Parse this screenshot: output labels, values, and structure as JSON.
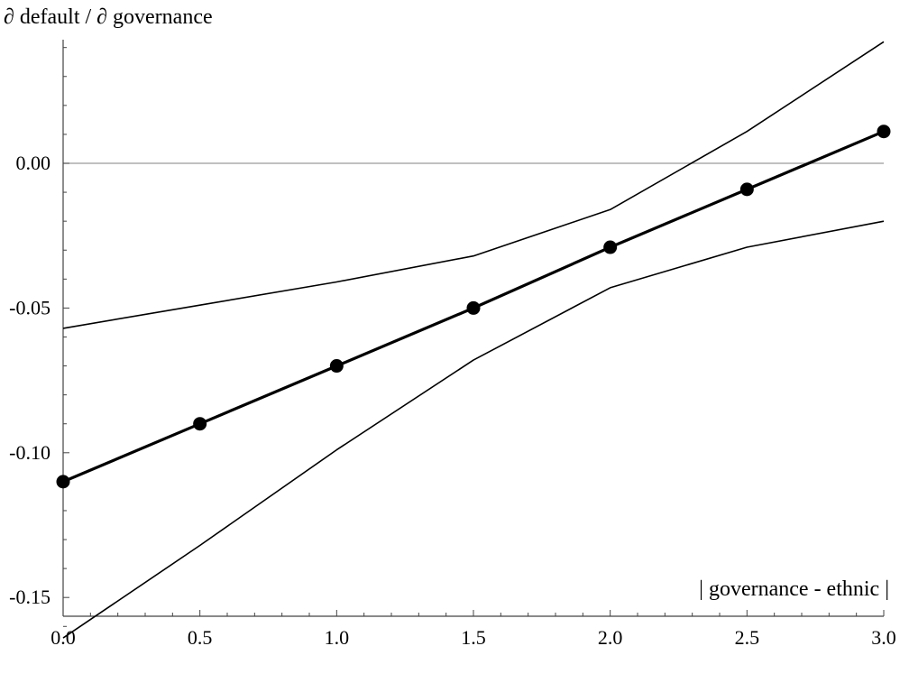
{
  "chart_data": {
    "type": "line",
    "title": "",
    "ylabel": "∂ default / ∂ governance",
    "xlabel": "| governance - ethnic |",
    "xlim": [
      0.0,
      3.0
    ],
    "ylim": [
      -0.165,
      0.043
    ],
    "x_ticks": [
      0.0,
      0.5,
      1.0,
      1.5,
      2.0,
      2.5,
      3.0
    ],
    "x_tick_labels": [
      "0.0",
      "0.5",
      "1.0",
      "1.5",
      "2.0",
      "2.5",
      "3.0"
    ],
    "y_ticks": [
      0.0,
      -0.05,
      -0.1,
      -0.15
    ],
    "y_tick_labels": [
      "0.00",
      "-0.05",
      "-0.10",
      "-0.15"
    ],
    "reference_line_y": 0.0,
    "grid": false,
    "series": [
      {
        "role": "estimate",
        "x": [
          0.0,
          0.5,
          1.0,
          1.5,
          2.0,
          2.5,
          3.0
        ],
        "y": [
          -0.11,
          -0.09,
          -0.07,
          -0.05,
          -0.029,
          -0.009,
          0.011
        ],
        "markers": true
      },
      {
        "role": "upper-bound",
        "x": [
          0.0,
          0.5,
          1.0,
          1.5,
          2.0,
          2.5,
          3.0
        ],
        "y": [
          -0.057,
          -0.049,
          -0.041,
          -0.032,
          -0.016,
          0.011,
          0.042
        ],
        "markers": false
      },
      {
        "role": "lower-bound",
        "x": [
          0.0,
          0.5,
          1.0,
          1.5,
          2.0,
          2.5,
          3.0
        ],
        "y": [
          -0.164,
          -0.132,
          -0.099,
          -0.068,
          -0.043,
          -0.029,
          -0.02
        ],
        "markers": false
      }
    ]
  }
}
